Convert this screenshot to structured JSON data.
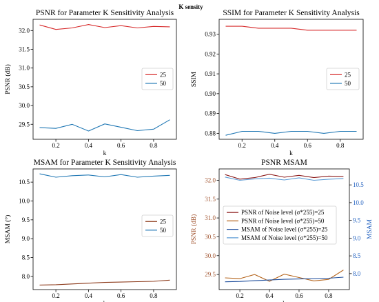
{
  "figure_title": "K sensity",
  "chart_data": [
    {
      "type": "line",
      "title": "PSNR for Parameter K Sensitivity Analysis",
      "xlabel": "k",
      "ylabel": "PSNR (dB)",
      "xlim": [
        0.06,
        0.94
      ],
      "ylim": [
        29.1,
        32.3
      ],
      "xticks": [
        0.2,
        0.4,
        0.6,
        0.8
      ],
      "xtick_labels": [
        "0.2",
        "0.4",
        "0.6",
        "0.8"
      ],
      "yticks": [
        29.5,
        30.0,
        30.5,
        31.0,
        31.5,
        32.0
      ],
      "ytick_labels": [
        "29.5",
        "30.0",
        "30.5",
        "31.0",
        "31.5",
        "32.0"
      ],
      "x": [
        0.1,
        0.2,
        0.3,
        0.4,
        0.5,
        0.6,
        0.7,
        0.8,
        0.9
      ],
      "series": [
        {
          "name": "25",
          "color": "#d62728",
          "values": [
            32.15,
            32.03,
            32.07,
            32.16,
            32.08,
            32.13,
            32.07,
            32.11,
            32.1
          ]
        },
        {
          "name": "50",
          "color": "#1f77b4",
          "values": [
            29.41,
            29.39,
            29.5,
            29.32,
            29.51,
            29.42,
            29.33,
            29.37,
            29.62
          ]
        }
      ],
      "legend": "center-right",
      "grid": false
    },
    {
      "type": "line",
      "title": "SSIM for Parameter K Sensitivity Analysis",
      "xlabel": "k",
      "ylabel": "SSIM",
      "xlim": [
        0.06,
        0.94
      ],
      "ylim": [
        0.877,
        0.9375
      ],
      "xticks": [
        0.2,
        0.4,
        0.6,
        0.8
      ],
      "xtick_labels": [
        "0.2",
        "0.4",
        "0.6",
        "0.8"
      ],
      "yticks": [
        0.88,
        0.89,
        0.9,
        0.91,
        0.92,
        0.93
      ],
      "ytick_labels": [
        "0.88",
        "0.89",
        "0.90",
        "0.91",
        "0.92",
        "0.93"
      ],
      "x": [
        0.1,
        0.2,
        0.3,
        0.4,
        0.5,
        0.6,
        0.7,
        0.8,
        0.9
      ],
      "series": [
        {
          "name": "25",
          "color": "#d62728",
          "values": [
            0.934,
            0.934,
            0.933,
            0.933,
            0.933,
            0.932,
            0.932,
            0.932,
            0.932
          ]
        },
        {
          "name": "50",
          "color": "#1f77b4",
          "values": [
            0.879,
            0.881,
            0.881,
            0.88,
            0.881,
            0.881,
            0.88,
            0.881,
            0.881
          ]
        }
      ],
      "legend": "center-right",
      "grid": false
    },
    {
      "type": "line",
      "title": "MSAM for Parameter K Sensitivity Analysis",
      "xlabel": "k",
      "ylabel": "MSAM (°)",
      "xlim": [
        0.06,
        0.94
      ],
      "ylim": [
        7.65,
        10.85
      ],
      "xticks": [
        0.2,
        0.4,
        0.6,
        0.8
      ],
      "xtick_labels": [
        "0.2",
        "0.4",
        "0.6",
        "0.8"
      ],
      "yticks": [
        8.0,
        8.5,
        9.0,
        9.5,
        10.0,
        10.5
      ],
      "ytick_labels": [
        "8.0",
        "8.5",
        "9.0",
        "9.5",
        "10.0",
        "10.5"
      ],
      "x": [
        0.1,
        0.2,
        0.3,
        0.4,
        0.5,
        0.6,
        0.7,
        0.8,
        0.9
      ],
      "series": [
        {
          "name": "25",
          "color": "#8c3a1a",
          "values": [
            7.77,
            7.78,
            7.8,
            7.82,
            7.84,
            7.85,
            7.86,
            7.87,
            7.9
          ]
        },
        {
          "name": "50",
          "color": "#1f77b4",
          "values": [
            10.72,
            10.63,
            10.67,
            10.69,
            10.64,
            10.7,
            10.63,
            10.66,
            10.68
          ]
        }
      ],
      "legend": "center-right",
      "grid": false
    },
    {
      "type": "line",
      "title": "PSNR MSAM",
      "xlabel": "k",
      "ylabel": "PSNR (dB)",
      "y2label": "MSAM",
      "xlim": [
        0.06,
        0.94
      ],
      "ylim": [
        29.1,
        32.3
      ],
      "y2lim": [
        7.55,
        10.95
      ],
      "xticks": [
        0.2,
        0.4,
        0.6,
        0.8
      ],
      "xtick_labels": [
        "0.2",
        "0.4",
        "0.6",
        "0.8"
      ],
      "yticks": [
        29.5,
        30.0,
        30.5,
        31.0,
        31.5,
        32.0
      ],
      "ytick_labels": [
        "29.5",
        "30.0",
        "30.5",
        "31.0",
        "31.5",
        "32.0"
      ],
      "y2ticks": [
        8.0,
        8.5,
        9.0,
        9.5,
        10.0,
        10.5
      ],
      "y2tick_labels": [
        "8.0",
        "8.5",
        "9.0",
        "9.5",
        "10.0",
        "10.5"
      ],
      "left_axis_color": "#a0522d",
      "right_axis_color": "#1f5fbf",
      "x": [
        0.1,
        0.2,
        0.3,
        0.4,
        0.5,
        0.6,
        0.7,
        0.8,
        0.9
      ],
      "series": [
        {
          "name": "PSNR of Noise level (σ*255)=25",
          "axis": "left",
          "color": "#8b1a1a",
          "values": [
            32.15,
            32.03,
            32.07,
            32.16,
            32.08,
            32.13,
            32.07,
            32.11,
            32.1
          ]
        },
        {
          "name": "PSNR of Noise level (σ*255)=50",
          "axis": "left",
          "color": "#b5651d",
          "values": [
            29.41,
            29.39,
            29.5,
            29.32,
            29.51,
            29.42,
            29.33,
            29.37,
            29.62
          ]
        },
        {
          "name": "MSAM of Noise level (σ*255)=25",
          "axis": "right",
          "color": "#1f4e9c",
          "values": [
            7.77,
            7.78,
            7.8,
            7.82,
            7.84,
            7.85,
            7.86,
            7.87,
            7.9
          ]
        },
        {
          "name": "MSAM of Noise level (σ*255)=50",
          "axis": "right",
          "color": "#5b9bd5",
          "values": [
            10.72,
            10.63,
            10.67,
            10.69,
            10.64,
            10.7,
            10.63,
            10.66,
            10.68
          ]
        }
      ],
      "legend": "center",
      "grid": false
    }
  ]
}
